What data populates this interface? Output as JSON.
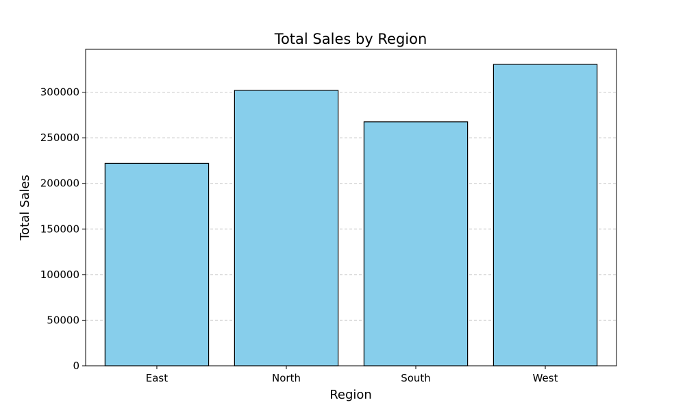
{
  "chart_data": {
    "type": "bar",
    "title": "Total Sales by Region",
    "xlabel": "Region",
    "ylabel": "Total Sales",
    "categories": [
      "East",
      "North",
      "South",
      "West"
    ],
    "values": [
      222000,
      302000,
      267500,
      330500
    ],
    "ylim": [
      0,
      347000
    ],
    "yticks": [
      0,
      50000,
      100000,
      150000,
      200000,
      250000,
      300000
    ],
    "grid": {
      "axis": "y",
      "style": "dashed",
      "color": "#c8c8c8"
    },
    "bar_color": "#87ceeb",
    "bar_edge_color": "#000000"
  }
}
